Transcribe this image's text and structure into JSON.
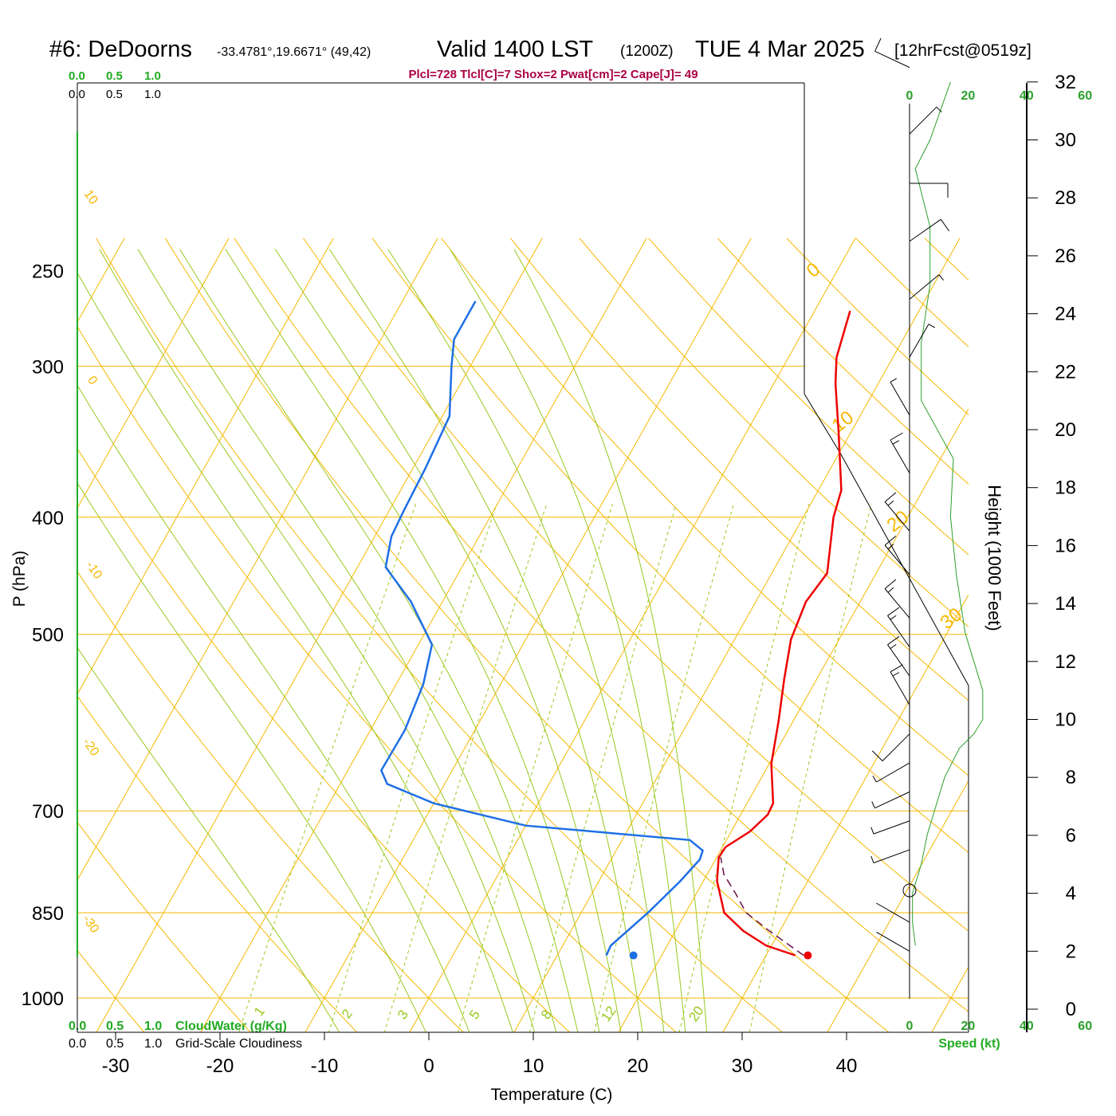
{
  "header": {
    "station": "#6: DeDoorns",
    "coords": "-33.4781°,19.6671° (49,42)",
    "valid": "Valid 1400 LST",
    "zulu": "(1200Z)",
    "date": "TUE 4 Mar 2025",
    "fcst": "[12hrFcst@0519z]",
    "indices": "Plcl=728 Tlcl[C]=7 Shox=2 Pwat[cm]=2 Cape[J]= 49"
  },
  "labels": {
    "ylabel": "P (hPa)",
    "xlabel": "Temperature (C)",
    "height_label": "Height (1000 Feet)",
    "cloudwater": "CloudWater (g/Kg)",
    "cloudiness": "Grid-Scale Cloudiness",
    "speed": "Speed (kt)",
    "cloud_ticks": [
      "0.0",
      "0.5",
      "1.0"
    ]
  },
  "colors": {
    "temperature": "#ee0000",
    "dewpoint": "#1e6fe6",
    "isotherm": "#f5b800",
    "dry_adiabat": "#f5b800",
    "moist_adiabat": "#99c81e",
    "mixing_ratio": "#99c81e",
    "parcel": "#6a0f4a",
    "wind_speed": "#2aa02a",
    "indices": "#aa0044"
  },
  "chart_data": {
    "type": "line",
    "skew_t": true,
    "y_scale": "log",
    "pressure_ticks": [
      250,
      300,
      400,
      500,
      700,
      850,
      1000
    ],
    "temperature_ticks": [
      -30,
      -20,
      -10,
      0,
      10,
      20,
      30,
      40
    ],
    "ylim": [
      1000,
      250
    ],
    "xlim": [
      -33,
      45
    ],
    "series": [
      {
        "role": "temperature",
        "points": [
          [
            922,
            32.8
          ],
          [
            905,
            29.5
          ],
          [
            880,
            26.5
          ],
          [
            850,
            23.7
          ],
          [
            800,
            21.3
          ],
          [
            765,
            20.2
          ],
          [
            750,
            20.3
          ],
          [
            728,
            21.8
          ],
          [
            705,
            22.6
          ],
          [
            690,
            22.5
          ],
          [
            640,
            20.2
          ],
          [
            590,
            18.6
          ],
          [
            545,
            16.9
          ],
          [
            505,
            15.4
          ],
          [
            470,
            14.8
          ],
          [
            445,
            15.3
          ],
          [
            420,
            14.0
          ],
          [
            400,
            12.9
          ],
          [
            380,
            12.2
          ],
          [
            340,
            8.8
          ],
          [
            310,
            5.9
          ],
          [
            295,
            4.6
          ],
          [
            270,
            3.4
          ]
        ]
      },
      {
        "role": "dewpoint",
        "points": [
          [
            922,
            14.7
          ],
          [
            905,
            14.6
          ],
          [
            880,
            15.4
          ],
          [
            850,
            16.4
          ],
          [
            800,
            17.8
          ],
          [
            768,
            18.5
          ],
          [
            755,
            18.3
          ],
          [
            740,
            16.5
          ],
          [
            720,
            0.0
          ],
          [
            690,
            -10.0
          ],
          [
            665,
            -15.5
          ],
          [
            648,
            -16.8
          ],
          [
            600,
            -16.7
          ],
          [
            550,
            -17.4
          ],
          [
            510,
            -18.7
          ],
          [
            470,
            -23.0
          ],
          [
            440,
            -27.3
          ],
          [
            415,
            -28.4
          ],
          [
            395,
            -28.6
          ],
          [
            365,
            -28.8
          ],
          [
            330,
            -29.3
          ],
          [
            300,
            -31.8
          ],
          [
            285,
            -33.0
          ],
          [
            265,
            -33.0
          ]
        ]
      },
      {
        "role": "parcel",
        "points": [
          [
            922,
            33.6
          ],
          [
            880,
            29.0
          ],
          [
            850,
            25.8
          ],
          [
            820,
            23.8
          ],
          [
            790,
            21.6
          ],
          [
            765,
            20.4
          ]
        ]
      }
    ],
    "surface_markers": {
      "pressure": 922,
      "temperature": 34,
      "dewpoint": 17.3
    },
    "isotherm_labels": [
      "0",
      "10",
      "20",
      "30"
    ],
    "dry_adiabat_labels": [
      "10",
      "0",
      "-10",
      "-20",
      "-30"
    ],
    "mixing_ratio_labels": [
      "1",
      "2",
      "3",
      "5",
      "8",
      "12",
      "20"
    ],
    "height_axis": {
      "label": "Height (1000 Feet)",
      "ticks": [
        0,
        2,
        4,
        6,
        8,
        10,
        12,
        14,
        16,
        18,
        20,
        22,
        24,
        26,
        28,
        30,
        32
      ]
    },
    "speed_axis": {
      "label": "Speed (kt)",
      "ticks": [
        0,
        20,
        40,
        60
      ],
      "xlim": [
        0,
        60
      ]
    },
    "wind_speed_profile": [
      {
        "height_kft": 2.2,
        "speed_kt": 2
      },
      {
        "height_kft": 3,
        "speed_kt": 1
      },
      {
        "height_kft": 4,
        "speed_kt": 1
      },
      {
        "height_kft": 5,
        "speed_kt": 4
      },
      {
        "height_kft": 6,
        "speed_kt": 6
      },
      {
        "height_kft": 7,
        "speed_kt": 9
      },
      {
        "height_kft": 8,
        "speed_kt": 12
      },
      {
        "height_kft": 9,
        "speed_kt": 17
      },
      {
        "height_kft": 9.5,
        "speed_kt": 22
      },
      {
        "height_kft": 10,
        "speed_kt": 25
      },
      {
        "height_kft": 11,
        "speed_kt": 25
      },
      {
        "height_kft": 12,
        "speed_kt": 22
      },
      {
        "height_kft": 13,
        "speed_kt": 19
      },
      {
        "height_kft": 15,
        "speed_kt": 16
      },
      {
        "height_kft": 17,
        "speed_kt": 14
      },
      {
        "height_kft": 19,
        "speed_kt": 15
      },
      {
        "height_kft": 21,
        "speed_kt": 4
      },
      {
        "height_kft": 23,
        "speed_kt": 4
      },
      {
        "height_kft": 25,
        "speed_kt": 7
      },
      {
        "height_kft": 27,
        "speed_kt": 7
      },
      {
        "height_kft": 29,
        "speed_kt": 2
      },
      {
        "height_kft": 30,
        "speed_kt": 7
      },
      {
        "height_kft": 32,
        "speed_kt": 14
      }
    ],
    "wind_barbs": [
      {
        "height_kft": 2.0,
        "dir_deg": 300,
        "speed_kt": 2
      },
      {
        "height_kft": 3.0,
        "dir_deg": 300,
        "speed_kt": 2
      },
      {
        "height_kft": 4.1,
        "dir_deg": 0,
        "speed_kt": 0,
        "calm": true
      },
      {
        "height_kft": 5.5,
        "dir_deg": 250,
        "speed_kt": 7
      },
      {
        "height_kft": 6.5,
        "dir_deg": 250,
        "speed_kt": 5
      },
      {
        "height_kft": 7.5,
        "dir_deg": 245,
        "speed_kt": 5
      },
      {
        "height_kft": 8.5,
        "dir_deg": 240,
        "speed_kt": 5
      },
      {
        "height_kft": 9.5,
        "dir_deg": 225,
        "speed_kt": 10
      },
      {
        "height_kft": 10.5,
        "dir_deg": 330,
        "speed_kt": 15
      },
      {
        "height_kft": 11.5,
        "dir_deg": 325,
        "speed_kt": 15
      },
      {
        "height_kft": 12.5,
        "dir_deg": 325,
        "speed_kt": 15
      },
      {
        "height_kft": 13.5,
        "dir_deg": 320,
        "speed_kt": 15
      },
      {
        "height_kft": 15.0,
        "dir_deg": 320,
        "speed_kt": 15
      },
      {
        "height_kft": 16.5,
        "dir_deg": 320,
        "speed_kt": 15
      },
      {
        "height_kft": 18.5,
        "dir_deg": 330,
        "speed_kt": 15
      },
      {
        "height_kft": 20.5,
        "dir_deg": 330,
        "speed_kt": 5
      },
      {
        "height_kft": 22.5,
        "dir_deg": 30,
        "speed_kt": 5
      },
      {
        "height_kft": 24.5,
        "dir_deg": 50,
        "speed_kt": 5
      },
      {
        "height_kft": 26.5,
        "dir_deg": 55,
        "speed_kt": 10
      },
      {
        "height_kft": 28.5,
        "dir_deg": 90,
        "speed_kt": 10
      },
      {
        "height_kft": 30.2,
        "dir_deg": 45,
        "speed_kt": 5
      },
      {
        "height_kft": 32.5,
        "dir_deg": 295,
        "speed_kt": 10
      }
    ]
  }
}
